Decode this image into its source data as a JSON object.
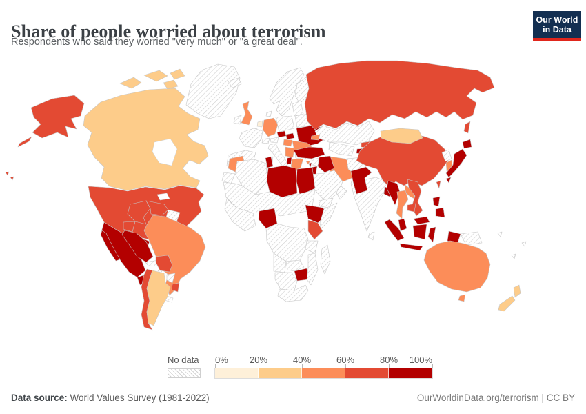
{
  "header": {
    "title": "Share of people worried about terrorism",
    "subtitle": "Respondents who said they worried \"very much\" or \"a great deal\".",
    "logo": {
      "line1": "Our World",
      "line2": "in Data"
    }
  },
  "legend": {
    "no_data_label": "No data",
    "tick_labels": [
      "0%",
      "20%",
      "40%",
      "60%",
      "80%",
      "100%"
    ]
  },
  "footer": {
    "source_label": "Data source:",
    "source_value": " World Values Survey (1981-2022)",
    "credit": "OurWorldinData.org/terrorism | CC BY"
  },
  "colors": {
    "logo_bg": "#132f51",
    "logo_stripe": "#e0261c",
    "title": "#3b4045",
    "subtitle": "#5b5f62",
    "footer": "#5b5b5b",
    "legend_text": "#5a5a5a",
    "country_border": "#c6c6c6",
    "hatch_line": "#cfcfcf"
  },
  "chart_data": {
    "type": "choropleth",
    "title": "Share of people worried about terrorism",
    "unit": "% of respondents worried \"very much\" or \"a great deal\"",
    "legend_buckets": [
      {
        "range": "0-20%",
        "color": "#fef0d9"
      },
      {
        "range": "20-40%",
        "color": "#fdcc8a"
      },
      {
        "range": "40-60%",
        "color": "#fc8d59"
      },
      {
        "range": "60-80%",
        "color": "#e34a33"
      },
      {
        "range": "80-100%",
        "color": "#b30000"
      }
    ],
    "no_data_style": "hatched",
    "entities": {
      "United States": "60-80%",
      "Canada": "20-40%",
      "Greenland": "No data",
      "Mexico": "80-100%",
      "Belize": "40-60%",
      "Guatemala": "80-100%",
      "Honduras": "No data",
      "Nicaragua": "60-80%",
      "Costa Rica & Panama": "No data",
      "Cuba": "No data",
      "Jamaica": "No data",
      "Haiti": "80-100%",
      "Colombia": "60-80%",
      "Venezuela": "60-80%",
      "Guianas": "No data",
      "Ecuador": "60-80%",
      "Peru": "80-100%",
      "Brazil": "40-60%",
      "Bolivia": "60-80%",
      "Paraguay": "No data",
      "Uruguay": "60-80%",
      "Argentina": "20-40%",
      "Chile": "60-80%",
      "Iceland": "No data",
      "United Kingdom": "40-60%",
      "Ireland": "No data",
      "Norway & Sweden": "No data",
      "Finland": "No data",
      "Denmark": "No data",
      "Netherlands": "0-20%",
      "Belgium": "No data",
      "France": "No data",
      "Spain": "No data",
      "Portugal": "No data",
      "Germany": "40-60%",
      "Switzerland": "No data",
      "Austria": "No data",
      "Italy": "No data",
      "Poland": "No data",
      "Czechia": "80-100%",
      "Slovakia": "80-100%",
      "Hungary": "40-60%",
      "Baltic states": "No data",
      "Belarus": "No data",
      "Ukraine": "80-100%",
      "Romania": "40-60%",
      "Serbia": "40-60%",
      "Bulgaria": "No data",
      "Albania": "80-100%",
      "Greece": "40-60%",
      "Russia": "60-80%",
      "Kazakhstan": "No data",
      "Uzbekistan & Turkmenistan": "No data",
      "Kyrgyzstan": "60-80%",
      "Tajikistan": "80-100%",
      "Georgia": "40-60%",
      "Turkey": "80-100%",
      "Cyprus": "40-60%",
      "Syria": "No data",
      "Lebanon": "80-100%",
      "Israel": "No data",
      "Jordan": "80-100%",
      "Iraq": "80-100%",
      "Saudi Arabia": "No data",
      "Yemen": "No data",
      "Oman": "No data",
      "Iran": "40-60%",
      "Afghanistan": "No data",
      "Pakistan": "80-100%",
      "India": "No data",
      "Sri Lanka": "No data",
      "Bangladesh": "80-100%",
      "Mongolia": "20-40%",
      "China": "60-80%",
      "North Korea": "No data",
      "South Korea": "40-60%",
      "Japan": "80-100%",
      "Taiwan": "60-80%",
      "Myanmar": "80-100%",
      "Laos": "40-60%",
      "Vietnam": "60-80%",
      "Thailand": "40-60%",
      "Cambodia": "60-80%",
      "Malaysia": "80-100%",
      "Indonesia": "80-100%",
      "Philippines": "80-100%",
      "Papua New Guinea": "No data",
      "Timor": "No data",
      "Pacific islands": "No data",
      "Morocco": "40-60%",
      "Western Sahara": "No data",
      "Algeria": "No data",
      "Tunisia": "80-100%",
      "Libya": "80-100%",
      "Egypt": "80-100%",
      "Sahel & Sudan": "No data",
      "West Africa": "No data",
      "Nigeria": "80-100%",
      "Ethiopia": "80-100%",
      "Somalia": "No data",
      "Kenya": "60-80%",
      "Central Africa": "No data",
      "Tanzania": "No data",
      "Angola": "No data",
      "Zambia": "No data",
      "Zimbabwe": "80-100%",
      "Mozambique": "No data",
      "Namibia & Botswana": "No data",
      "South Africa": "No data",
      "Madagascar": "No data",
      "Australia": "40-60%",
      "New Zealand": "20-40%"
    }
  }
}
